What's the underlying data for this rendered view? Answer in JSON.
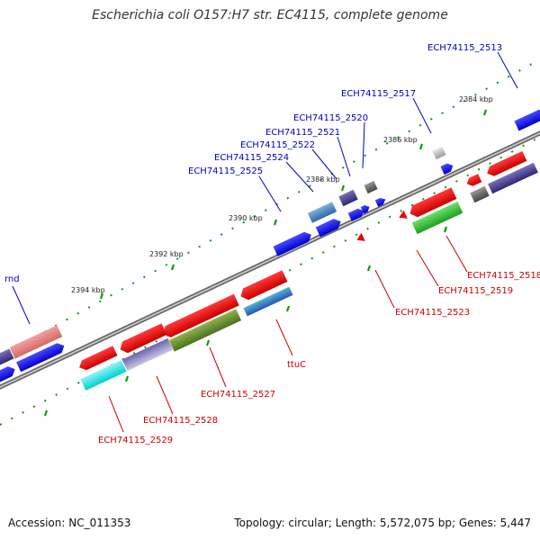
{
  "title": "Escherichia coli O157:H7 str. EC4115, complete genome",
  "footer": {
    "accession": "Accession: NC_011353",
    "summary": "Topology: circular; Length: 5,572,075 bp; Genes: 5,447"
  },
  "colors": {
    "blue": "#0000ee",
    "red": "#ee0000",
    "green": "#33aa33",
    "cyan": "#00dddd",
    "label_blue": "#0000bb",
    "label_red": "#cc0000",
    "tick_green": "#119911",
    "backbone": "#777777"
  },
  "ruler_labels": [
    "2384 kbp",
    "2386 kbp",
    "2388 kbp",
    "2390 kbp",
    "2392 kbp",
    "2394 kbp"
  ],
  "gene_labels_outer": [
    "ECH74115_2513",
    "ECH74115_2517",
    "ECH74115_2520",
    "ECH74115_2521",
    "ECH74115_2522",
    "ECH74115_2524",
    "ECH74115_2525",
    "rnd"
  ],
  "gene_labels_inner": [
    "ECH74115_2518",
    "ECH74115_2519",
    "ECH74115_2523",
    "ttuC",
    "ECH74115_2527",
    "ECH74115_2528",
    "ECH74115_2529"
  ]
}
